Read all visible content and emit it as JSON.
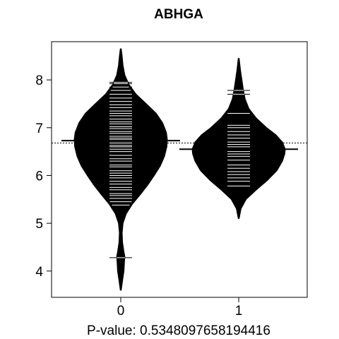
{
  "chart_data": {
    "type": "beanplot",
    "title": "ABHGA",
    "xlabel": "P-value: 0.5348097658194416",
    "ylabel": "",
    "ylim": [
      3.45,
      8.8
    ],
    "yticks": [
      4,
      5,
      6,
      7,
      8
    ],
    "categories": [
      "0",
      "1"
    ],
    "overall_mean": 6.68,
    "series": [
      {
        "category": "0",
        "mean": 6.73,
        "min": 3.6,
        "max": 8.65,
        "density_profile": [
          [
            3.6,
            0.01
          ],
          [
            3.8,
            0.04
          ],
          [
            4.0,
            0.07
          ],
          [
            4.2,
            0.08
          ],
          [
            4.3,
            0.09
          ],
          [
            4.4,
            0.07
          ],
          [
            4.6,
            0.04
          ],
          [
            4.8,
            0.03
          ],
          [
            5.0,
            0.05
          ],
          [
            5.2,
            0.12
          ],
          [
            5.4,
            0.25
          ],
          [
            5.6,
            0.42
          ],
          [
            5.8,
            0.58
          ],
          [
            6.0,
            0.72
          ],
          [
            6.2,
            0.85
          ],
          [
            6.4,
            0.94
          ],
          [
            6.6,
            0.99
          ],
          [
            6.75,
            1.0
          ],
          [
            6.9,
            0.98
          ],
          [
            7.1,
            0.9
          ],
          [
            7.3,
            0.76
          ],
          [
            7.5,
            0.55
          ],
          [
            7.7,
            0.33
          ],
          [
            7.9,
            0.18
          ],
          [
            8.1,
            0.09
          ],
          [
            8.3,
            0.05
          ],
          [
            8.5,
            0.03
          ],
          [
            8.65,
            0.01
          ]
        ],
        "observations": [
          4.28,
          5.38,
          5.45,
          5.52,
          5.58,
          5.62,
          5.7,
          5.75,
          5.82,
          5.88,
          5.95,
          6.0,
          6.05,
          6.1,
          6.18,
          6.22,
          6.3,
          6.35,
          6.42,
          6.5,
          6.55,
          6.6,
          6.63,
          6.68,
          6.72,
          6.75,
          6.78,
          6.82,
          6.88,
          6.92,
          6.98,
          7.02,
          7.08,
          7.12,
          7.18,
          7.25,
          7.3,
          7.35,
          7.42,
          7.48,
          7.55,
          7.62,
          7.7,
          7.78,
          7.85,
          7.92,
          7.95
        ]
      },
      {
        "category": "1",
        "mean": 6.55,
        "min": 5.1,
        "max": 8.45,
        "density_profile": [
          [
            5.1,
            0.01
          ],
          [
            5.3,
            0.05
          ],
          [
            5.5,
            0.16
          ],
          [
            5.7,
            0.38
          ],
          [
            5.9,
            0.62
          ],
          [
            6.1,
            0.82
          ],
          [
            6.3,
            0.94
          ],
          [
            6.45,
            0.99
          ],
          [
            6.55,
            1.0
          ],
          [
            6.7,
            0.94
          ],
          [
            6.85,
            0.8
          ],
          [
            7.0,
            0.6
          ],
          [
            7.2,
            0.38
          ],
          [
            7.4,
            0.22
          ],
          [
            7.6,
            0.14
          ],
          [
            7.8,
            0.1
          ],
          [
            8.0,
            0.07
          ],
          [
            8.2,
            0.04
          ],
          [
            8.45,
            0.01
          ]
        ],
        "observations": [
          5.78,
          5.88,
          5.95,
          6.02,
          6.08,
          6.15,
          6.22,
          6.32,
          6.4,
          6.45,
          6.5,
          6.55,
          6.6,
          6.65,
          6.7,
          6.78,
          6.85,
          6.92,
          7.0,
          7.05,
          7.3,
          7.7,
          7.78
        ]
      }
    ]
  }
}
